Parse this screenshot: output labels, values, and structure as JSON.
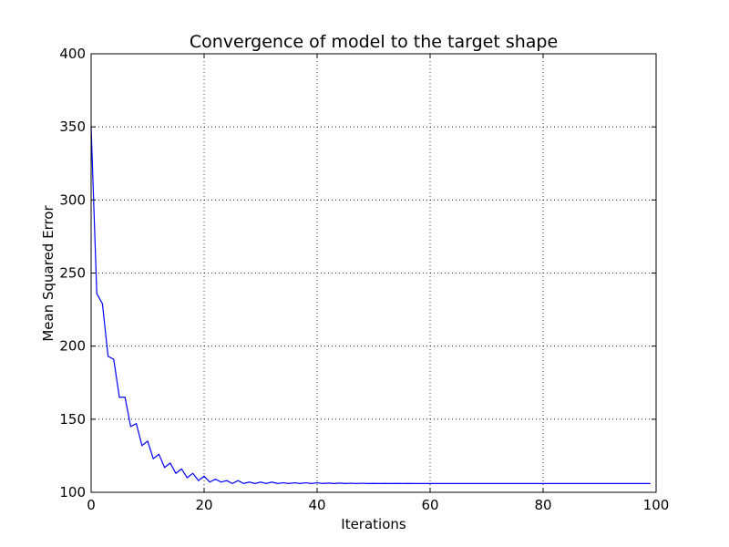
{
  "chart_data": {
    "type": "line",
    "title": "Convergence of model to the target shape",
    "xlabel": "Iterations",
    "ylabel": "Mean Squared Error",
    "xlim": [
      0,
      100
    ],
    "ylim": [
      100,
      400
    ],
    "xticks": [
      0,
      20,
      40,
      60,
      80,
      100
    ],
    "yticks": [
      100,
      150,
      200,
      250,
      300,
      350,
      400
    ],
    "grid": true,
    "series": [
      {
        "color": "#0000ff",
        "x": [
          0,
          1,
          2,
          3,
          4,
          5,
          6,
          7,
          8,
          9,
          10,
          11,
          12,
          13,
          14,
          15,
          16,
          17,
          18,
          19,
          20,
          21,
          22,
          23,
          24,
          25,
          26,
          27,
          28,
          29,
          30,
          31,
          32,
          33,
          34,
          35,
          36,
          37,
          38,
          39,
          40,
          41,
          42,
          43,
          44,
          45,
          46,
          47,
          48,
          49,
          50,
          51,
          52,
          53,
          54,
          55,
          56,
          57,
          58,
          59,
          60,
          61,
          62,
          63,
          64,
          65,
          66,
          67,
          68,
          69,
          70,
          71,
          72,
          73,
          74,
          75,
          76,
          77,
          78,
          79,
          80,
          81,
          82,
          83,
          84,
          85,
          86,
          87,
          88,
          89,
          90,
          91,
          92,
          93,
          94,
          95,
          96,
          97,
          98,
          99
        ],
        "values": [
          350,
          236,
          229,
          193,
          191,
          165,
          165,
          145,
          147,
          132,
          135,
          123,
          126,
          117,
          120,
          113,
          116,
          110,
          113,
          108,
          111,
          107,
          109,
          107,
          108,
          106,
          108,
          106,
          107,
          106,
          107,
          106,
          107,
          106,
          106.5,
          106,
          106.5,
          106,
          106.5,
          106,
          106.5,
          106,
          106.3,
          106,
          106.3,
          106,
          106.2,
          106,
          106.2,
          106,
          106.1,
          106,
          106.1,
          106,
          106.1,
          106,
          106.1,
          106,
          106,
          106,
          106,
          106,
          106,
          106,
          106,
          106,
          106,
          106,
          106,
          106,
          106,
          106,
          106,
          106,
          106,
          106,
          106,
          106,
          106,
          106,
          106,
          106,
          106,
          106,
          106,
          106,
          106,
          106,
          106,
          106,
          106,
          106,
          106,
          106,
          106,
          106,
          106,
          106,
          106,
          106
        ]
      }
    ]
  }
}
